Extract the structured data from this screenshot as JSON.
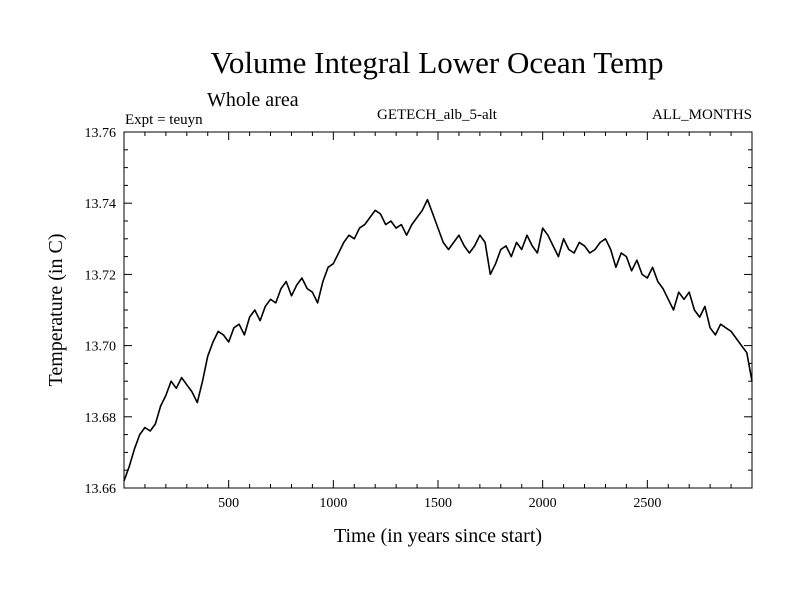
{
  "chart_data": {
    "type": "line",
    "title": "Volume Integral Lower Ocean Temp",
    "subtitle": "Whole area",
    "expt_label": "Expt = teuyn",
    "run_label": "GETECH_alb_5-alt",
    "months_label": "ALL_MONTHS",
    "xlabel": "Time (in years since start)",
    "ylabel": "Temperature (in C)",
    "xlim": [
      0,
      3000
    ],
    "ylim": [
      13.66,
      13.76
    ],
    "x_ticks": [
      500,
      1000,
      1500,
      2000,
      2500
    ],
    "x_tick_labels": [
      "500",
      "1000",
      "1500",
      "2000",
      "2500"
    ],
    "y_ticks": [
      13.66,
      13.68,
      13.7,
      13.72,
      13.74,
      13.76
    ],
    "y_tick_labels": [
      "13.66",
      "13.68",
      "13.70",
      "13.72",
      "13.74",
      "13.76"
    ],
    "grid": false,
    "series": [
      {
        "color": "#000000",
        "x": [
          0,
          25,
          50,
          75,
          100,
          125,
          150,
          175,
          200,
          225,
          250,
          275,
          300,
          325,
          350,
          375,
          400,
          425,
          450,
          475,
          500,
          525,
          550,
          575,
          600,
          625,
          650,
          675,
          700,
          725,
          750,
          775,
          800,
          825,
          850,
          875,
          900,
          925,
          950,
          975,
          1000,
          1025,
          1050,
          1075,
          1100,
          1125,
          1150,
          1175,
          1200,
          1225,
          1250,
          1275,
          1300,
          1325,
          1350,
          1375,
          1400,
          1425,
          1450,
          1475,
          1500,
          1525,
          1550,
          1575,
          1600,
          1625,
          1650,
          1675,
          1700,
          1725,
          1750,
          1775,
          1800,
          1825,
          1850,
          1875,
          1900,
          1925,
          1950,
          1975,
          2000,
          2025,
          2050,
          2075,
          2100,
          2125,
          2150,
          2175,
          2200,
          2225,
          2250,
          2275,
          2300,
          2325,
          2350,
          2375,
          2400,
          2425,
          2450,
          2475,
          2500,
          2525,
          2550,
          2575,
          2600,
          2625,
          2650,
          2675,
          2700,
          2725,
          2750,
          2775,
          2800,
          2825,
          2850,
          2875,
          2900,
          2925,
          2950,
          2975,
          3000
        ],
        "values": [
          13.662,
          13.666,
          13.671,
          13.675,
          13.677,
          13.676,
          13.678,
          13.683,
          13.686,
          13.69,
          13.688,
          13.691,
          13.689,
          13.687,
          13.684,
          13.69,
          13.697,
          13.701,
          13.704,
          13.703,
          13.701,
          13.705,
          13.706,
          13.703,
          13.708,
          13.71,
          13.707,
          13.711,
          13.713,
          13.712,
          13.716,
          13.718,
          13.714,
          13.717,
          13.719,
          13.716,
          13.715,
          13.712,
          13.718,
          13.722,
          13.723,
          13.726,
          13.729,
          13.731,
          13.73,
          13.733,
          13.734,
          13.736,
          13.738,
          13.737,
          13.734,
          13.735,
          13.733,
          13.734,
          13.731,
          13.734,
          13.736,
          13.738,
          13.741,
          13.737,
          13.733,
          13.729,
          13.727,
          13.729,
          13.731,
          13.728,
          13.726,
          13.728,
          13.731,
          13.729,
          13.72,
          13.723,
          13.727,
          13.728,
          13.725,
          13.729,
          13.727,
          13.731,
          13.728,
          13.726,
          13.733,
          13.731,
          13.728,
          13.725,
          13.73,
          13.727,
          13.726,
          13.729,
          13.728,
          13.726,
          13.727,
          13.729,
          13.73,
          13.727,
          13.722,
          13.726,
          13.725,
          13.721,
          13.724,
          13.72,
          13.719,
          13.722,
          13.718,
          13.716,
          13.713,
          13.71,
          13.715,
          13.713,
          13.715,
          13.71,
          13.708,
          13.711,
          13.705,
          13.703,
          13.706,
          13.705,
          13.704,
          13.702,
          13.7,
          13.698,
          13.69
        ]
      }
    ]
  }
}
